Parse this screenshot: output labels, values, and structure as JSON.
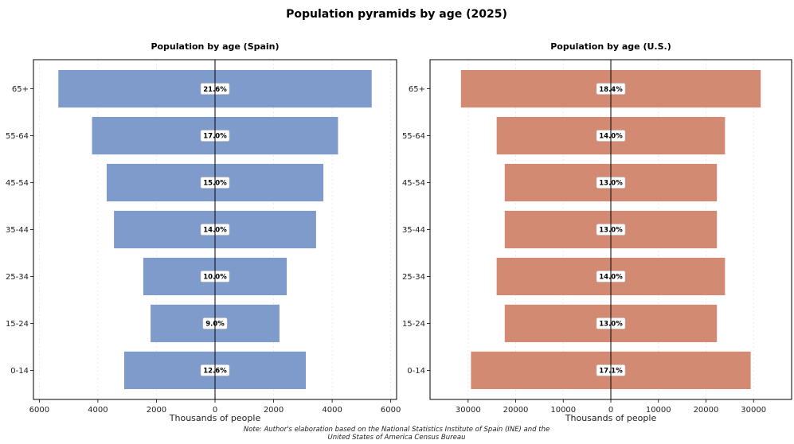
{
  "title": "Population pyramids by age (2025)",
  "note_lines": [
    "Note: Author's elaboration based on the National Statistics Institute of Spain (INE) and the",
    "United States of America Census Bureau"
  ],
  "colors": {
    "spain": "#7f9bcb",
    "us": "#d38a72",
    "axis": "#000000",
    "grid": "#e6e6e6"
  },
  "chart_data": [
    {
      "type": "bar",
      "orientation": "horizontal-pyramid",
      "title": "Population by age (Spain)",
      "xlabel": "Thousands of people",
      "categories": [
        "0-14",
        "15-24",
        "25-34",
        "35-44",
        "45-54",
        "55-64",
        "65+"
      ],
      "series": [
        {
          "values_left": [
            3100,
            2200,
            2450,
            3450,
            3700,
            4200,
            5350
          ],
          "values_right": [
            3100,
            2200,
            2450,
            3450,
            3700,
            4200,
            5350
          ]
        }
      ],
      "data_labels": [
        "12.6%",
        "9.0%",
        "10.0%",
        "14.0%",
        "15.0%",
        "17.0%",
        "21.6%"
      ],
      "xlim": [
        -6200,
        6200
      ],
      "xticks": [
        -6000,
        -4000,
        -2000,
        0,
        2000,
        4000,
        6000
      ],
      "xtick_labels": [
        "6000",
        "4000",
        "2000",
        "0",
        "2000",
        "4000",
        "6000"
      ],
      "grid": "vertical dotted"
    },
    {
      "type": "bar",
      "orientation": "horizontal-pyramid",
      "title": "Population by age (U.S.)",
      "xlabel": "Thousands of people",
      "categories": [
        "0-14",
        "15-24",
        "25-34",
        "35-44",
        "45-54",
        "55-64",
        "65+"
      ],
      "series": [
        {
          "values_left": [
            29400,
            22300,
            24000,
            22300,
            22300,
            24000,
            31500
          ],
          "values_right": [
            29400,
            22300,
            24000,
            22300,
            22300,
            24000,
            31500
          ]
        }
      ],
      "data_labels": [
        "17.1%",
        "13.0%",
        "14.0%",
        "13.0%",
        "13.0%",
        "14.0%",
        "18.4%"
      ],
      "xlim": [
        -38000,
        38000
      ],
      "xticks": [
        -30000,
        -20000,
        -10000,
        0,
        10000,
        20000,
        30000
      ],
      "xtick_labels": [
        "30000",
        "20000",
        "10000",
        "0",
        "10000",
        "20000",
        "30000"
      ],
      "grid": "vertical dotted"
    }
  ]
}
